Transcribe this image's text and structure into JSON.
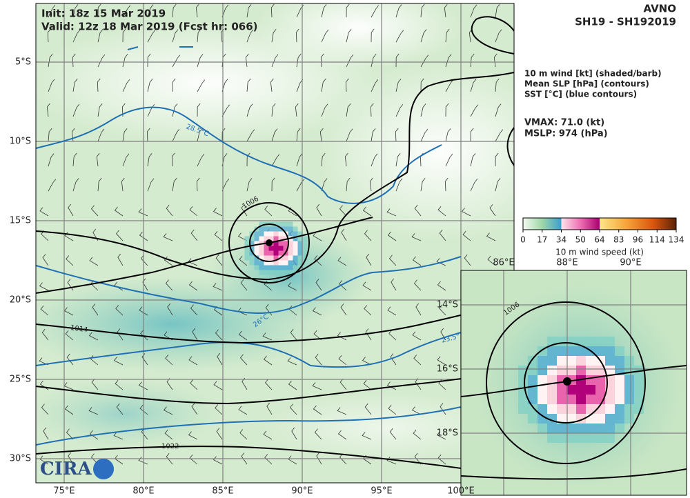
{
  "header": {
    "init": "Init:   18z 15 Mar 2019",
    "valid": "Valid: 12z 18 Mar 2019 (Fcst hr: 066)",
    "model": "AVNO",
    "storm": "SH19 - SH192019"
  },
  "legend": {
    "fields": [
      "10 m wind [kt] (shaded/barb)",
      "Mean SLP [hPa] (contours)",
      "SST [°C] (blue contours)"
    ],
    "vmax": "VMAX:  71.0 (kt)",
    "mslp": "MSLP:  974 (hPa)"
  },
  "colorbar": {
    "ticks": [
      0,
      17,
      34,
      50,
      64,
      83,
      96,
      114,
      134
    ],
    "label": "10 m wind speed (kt)"
  },
  "map": {
    "lon_ticks": [
      {
        "value": 75,
        "label": "75°E"
      },
      {
        "value": 80,
        "label": "80°E"
      },
      {
        "value": 85,
        "label": "85°E"
      },
      {
        "value": 90,
        "label": "90°E"
      },
      {
        "value": 95,
        "label": "95°E"
      },
      {
        "value": 100,
        "label": "100°E"
      }
    ],
    "lat_ticks": [
      {
        "value": 5,
        "label": "5°S"
      },
      {
        "value": 10,
        "label": "10°S"
      },
      {
        "value": 15,
        "label": "15°S"
      },
      {
        "value": 20,
        "label": "20°S"
      },
      {
        "value": 25,
        "label": "25°S"
      },
      {
        "value": 30,
        "label": "30°S"
      }
    ],
    "slp_labels": [
      "1006",
      "1014",
      "1022"
    ],
    "sst_labels": [
      "28.5°C",
      "26°C",
      "23.5°"
    ]
  },
  "inset": {
    "lon_ticks": [
      {
        "value": 86,
        "label": "86°E"
      },
      {
        "value": 88,
        "label": "88°E"
      },
      {
        "value": 90,
        "label": "90°E"
      }
    ],
    "lat_ticks": [
      {
        "value": 14,
        "label": "14°S"
      },
      {
        "value": 16,
        "label": "16°S"
      },
      {
        "value": 18,
        "label": "18°S"
      }
    ],
    "slp_label": "1006"
  },
  "logo": "CIRA"
}
